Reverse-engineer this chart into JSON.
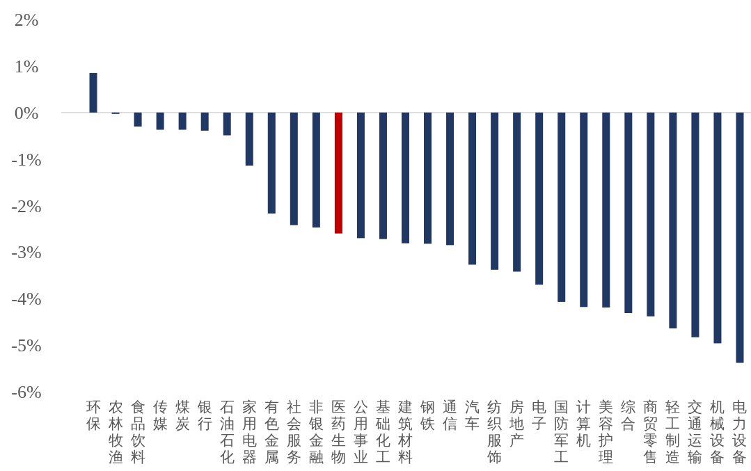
{
  "chart_data": {
    "type": "bar",
    "categories": [
      "环保",
      "农林牧渔",
      "食品饮料",
      "传媒",
      "煤炭",
      "银行",
      "石油石化",
      "家用电器",
      "有色金属",
      "社会服务",
      "非银金融",
      "医药生物",
      "公用事业",
      "基础化工",
      "建筑材料",
      "钢铁",
      "通信",
      "汽车",
      "纺织服饰",
      "房地产",
      "电子",
      "国防军工",
      "计算机",
      "美容护理",
      "综合",
      "商贸零售",
      "轻工制造",
      "交通运输",
      "机械设备",
      "电力设备"
    ],
    "values": [
      0.85,
      -0.03,
      -0.3,
      -0.37,
      -0.37,
      -0.39,
      -0.49,
      -1.14,
      -2.17,
      -2.42,
      -2.47,
      -2.6,
      -2.7,
      -2.72,
      -2.81,
      -2.82,
      -2.85,
      -3.27,
      -3.38,
      -3.42,
      -3.7,
      -4.07,
      -4.18,
      -4.19,
      -4.31,
      -4.38,
      -4.64,
      -4.83,
      -4.96,
      -5.38
    ],
    "colors": [
      "#1f3864",
      "#1f3864",
      "#1f3864",
      "#1f3864",
      "#1f3864",
      "#1f3864",
      "#1f3864",
      "#1f3864",
      "#1f3864",
      "#1f3864",
      "#1f3864",
      "#c00000",
      "#1f3864",
      "#1f3864",
      "#1f3864",
      "#1f3864",
      "#1f3864",
      "#1f3864",
      "#1f3864",
      "#1f3864",
      "#1f3864",
      "#1f3864",
      "#1f3864",
      "#1f3864",
      "#1f3864",
      "#1f3864",
      "#1f3864",
      "#1f3864",
      "#1f3864",
      "#1f3864"
    ],
    "ylim": [
      -6,
      2
    ],
    "yticks": [
      {
        "value": 2,
        "label": "2%"
      },
      {
        "value": 1,
        "label": "1%"
      },
      {
        "value": 0,
        "label": "0%"
      },
      {
        "value": -1,
        "label": "-1%"
      },
      {
        "value": -2,
        "label": "-2%"
      },
      {
        "value": -3,
        "label": "-3%"
      },
      {
        "value": -4,
        "label": "-4%"
      },
      {
        "value": -5,
        "label": "-5%"
      },
      {
        "value": -6,
        "label": "-6%"
      }
    ]
  }
}
